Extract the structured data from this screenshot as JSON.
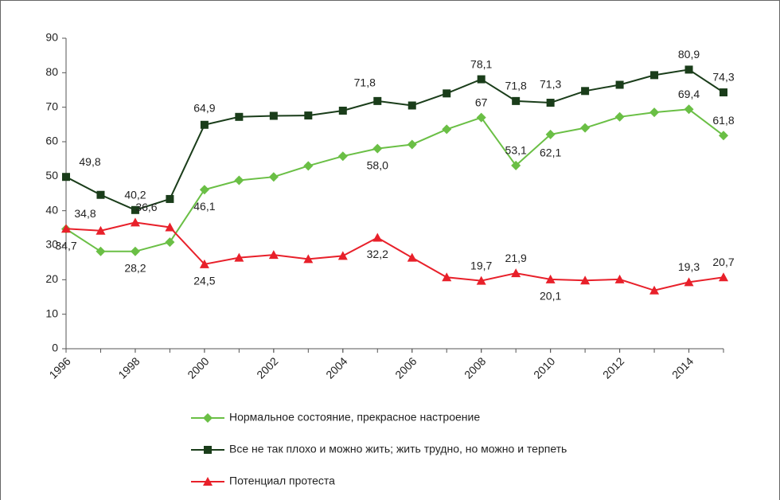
{
  "chart_data": {
    "type": "line",
    "x": [
      1996,
      1997,
      1998,
      1999,
      2000,
      2001,
      2002,
      2003,
      2004,
      2005,
      2006,
      2007,
      2008,
      2009,
      2010,
      2011,
      2012,
      2013,
      2014,
      2015
    ],
    "xlim": [
      1996,
      2015
    ],
    "xticks": [
      1996,
      1998,
      2000,
      2002,
      2004,
      2006,
      2008,
      2010,
      2012,
      2014
    ],
    "ylim": [
      0,
      90
    ],
    "yticks": [
      0,
      10,
      20,
      30,
      40,
      50,
      60,
      70,
      80,
      90
    ],
    "legend": "bottom",
    "series": [
      {
        "name": "Нормальное состояние, прекрасное настроение",
        "color": "#6abf45",
        "marker": "diamond",
        "values": [
          34.7,
          28.2,
          28.2,
          30.9,
          46.1,
          48.8,
          49.8,
          53.0,
          55.8,
          58.0,
          59.2,
          63.6,
          67,
          53.1,
          62.1,
          64.0,
          67.2,
          68.5,
          69.4,
          61.8
        ],
        "value_labels": [
          "34,7",
          null,
          "28,2",
          null,
          "46,1",
          null,
          null,
          null,
          null,
          "58,0",
          null,
          null,
          "67",
          "53,1",
          "62,1",
          null,
          null,
          null,
          "69,4",
          "61,8"
        ]
      },
      {
        "name": "Все не так плохо и можно жить; жить трудно, но можно и терпеть",
        "color": "#1a3d1a",
        "marker": "square",
        "values": [
          49.8,
          44.6,
          40.2,
          43.4,
          64.9,
          67.2,
          67.5,
          67.6,
          69.0,
          71.8,
          70.5,
          74.0,
          78.1,
          71.8,
          71.3,
          74.7,
          76.5,
          79.3,
          80.9,
          74.3
        ],
        "value_labels": [
          "49,8",
          null,
          "40,2",
          null,
          "64,9",
          null,
          null,
          null,
          null,
          "71,8",
          null,
          null,
          "78,1",
          "71,8",
          "71,3",
          null,
          null,
          null,
          "80,9",
          "74,3"
        ]
      },
      {
        "name": "Потенциал протеста",
        "color": "#e8202a",
        "marker": "triangle",
        "values": [
          34.8,
          34.2,
          36.6,
          35.2,
          24.5,
          26.4,
          27.2,
          26.0,
          26.9,
          32.2,
          26.4,
          20.7,
          19.7,
          21.9,
          20.1,
          19.8,
          20.1,
          16.9,
          19.3,
          20.7
        ],
        "value_labels": [
          "34,8",
          null,
          "36,6",
          null,
          "24,5",
          null,
          null,
          null,
          null,
          "32,2",
          null,
          null,
          "19,7",
          "21,9",
          "20,1",
          null,
          null,
          null,
          "19,3",
          "20,7"
        ]
      }
    ]
  }
}
